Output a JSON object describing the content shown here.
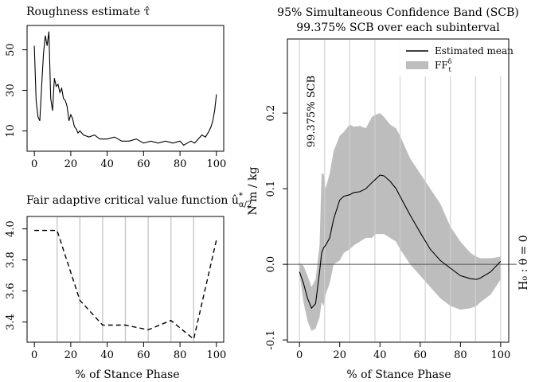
{
  "chart_data": [
    {
      "id": "roughness",
      "type": "line",
      "title": "Roughness estimate τ̂",
      "xlabel": "",
      "ylabel": "",
      "xlim": [
        0,
        100
      ],
      "ylim": [
        0,
        62
      ],
      "xticks": [
        0,
        20,
        40,
        60,
        80,
        100
      ],
      "yticks": [
        10,
        30,
        50
      ],
      "grid": false,
      "series": [
        {
          "x": [
            0,
            1,
            2,
            3,
            4,
            5,
            6,
            7,
            8,
            9,
            10,
            11,
            12,
            13,
            14,
            15,
            16,
            17,
            18,
            19,
            20,
            21,
            22,
            23,
            24,
            25,
            27,
            30,
            33,
            36,
            40,
            44,
            48,
            52,
            56,
            60,
            64,
            68,
            72,
            76,
            80,
            82,
            84,
            86,
            88,
            90,
            92,
            94,
            96,
            97,
            98,
            99,
            100
          ],
          "y": [
            52,
            25,
            17,
            15,
            32,
            48,
            57,
            52,
            59,
            26,
            20,
            36,
            32,
            33,
            29,
            31,
            26,
            25,
            22,
            15,
            18,
            16,
            12,
            11,
            9,
            10,
            8,
            7,
            8,
            6,
            6,
            7,
            5,
            5,
            6,
            4,
            5,
            4,
            5,
            4,
            5,
            3,
            4,
            5,
            4,
            6,
            8,
            7,
            10,
            12,
            15,
            20,
            28
          ]
        }
      ]
    },
    {
      "id": "critical",
      "type": "line",
      "title": "Fair adaptive critical value function û*α/2",
      "title_main": "Fair adaptive critical value function û",
      "title_sup": "*",
      "title_sub": "α/2",
      "xlabel": "% of Stance Phase",
      "ylabel": "",
      "xlim": [
        0,
        100
      ],
      "ylim": [
        3.27,
        4.08
      ],
      "xticks": [
        0,
        20,
        40,
        60,
        80,
        100
      ],
      "yticks": [
        3.4,
        3.6,
        3.8,
        4.0
      ],
      "vlines": [
        12.5,
        25,
        37.5,
        50,
        62.5,
        75,
        87.5
      ],
      "series": [
        {
          "style": "dashed",
          "x": [
            0,
            12.5,
            25,
            37.5,
            50,
            62.5,
            75,
            87.5,
            100
          ],
          "y": [
            3.99,
            3.99,
            3.54,
            3.38,
            3.38,
            3.35,
            3.41,
            3.29,
            3.93
          ]
        }
      ]
    },
    {
      "id": "band",
      "type": "area",
      "title": "95% Simultaneous Confidence Band (SCB)",
      "subtitle": "99.375% SCB over each subinterval",
      "xlabel": "% of Stance Phase",
      "ylabel": "N m / kg",
      "right_label": "H₀ : θ = 0",
      "annotation": "99.375% SCB",
      "xlim": [
        -6,
        104
      ],
      "ylim": [
        -0.103,
        0.298
      ],
      "xticks": [
        0,
        20,
        40,
        60,
        80,
        100
      ],
      "yticks": [
        -0.1,
        0.0,
        0.1,
        0.2
      ],
      "ytick_labels": [
        "-0.1",
        "0.0",
        "0.1",
        "0.2"
      ],
      "hline": 0,
      "vlines": [
        0,
        12.5,
        25,
        37.5,
        50,
        62.5,
        75,
        87.5,
        100
      ],
      "legend": {
        "position": "top-right",
        "items": [
          {
            "label": "Estimated mean",
            "kind": "line"
          },
          {
            "label": "FF",
            "sup": "δ",
            "sub": "t",
            "kind": "fill"
          }
        ]
      },
      "fill_color": "#bdbdbd",
      "x": [
        0,
        2,
        4,
        6,
        8,
        10,
        11,
        12,
        13,
        15,
        17,
        20,
        22,
        25,
        27,
        30,
        33,
        36,
        38,
        40,
        42,
        45,
        48,
        50,
        55,
        60,
        65,
        70,
        75,
        80,
        85,
        88,
        90,
        95,
        100
      ],
      "mean": [
        -0.01,
        -0.025,
        -0.045,
        -0.058,
        -0.052,
        -0.01,
        0.015,
        0.022,
        0.025,
        0.035,
        0.06,
        0.085,
        0.09,
        0.092,
        0.095,
        0.096,
        0.1,
        0.108,
        0.113,
        0.118,
        0.117,
        0.11,
        0.1,
        0.09,
        0.065,
        0.042,
        0.02,
        0.005,
        -0.005,
        -0.015,
        -0.019,
        -0.02,
        -0.018,
        -0.01,
        0.004
      ],
      "upper": [
        0.002,
        -0.002,
        -0.015,
        -0.03,
        -0.02,
        0.025,
        0.12,
        0.12,
        0.1,
        0.12,
        0.15,
        0.17,
        0.175,
        0.185,
        0.182,
        0.183,
        0.18,
        0.195,
        0.198,
        0.2,
        0.195,
        0.185,
        0.18,
        0.17,
        0.14,
        0.12,
        0.1,
        0.08,
        0.05,
        0.03,
        0.015,
        0.01,
        0.008,
        0.008,
        0.01
      ],
      "lower": [
        -0.012,
        -0.05,
        -0.075,
        -0.088,
        -0.085,
        -0.07,
        -0.05,
        -0.055,
        -0.04,
        -0.025,
        0.0,
        0.005,
        0.015,
        0.02,
        0.025,
        0.03,
        0.035,
        0.035,
        0.04,
        0.04,
        0.04,
        0.035,
        0.03,
        0.02,
        0.0,
        -0.015,
        -0.03,
        -0.045,
        -0.055,
        -0.06,
        -0.058,
        -0.055,
        -0.05,
        -0.04,
        -0.02
      ]
    }
  ]
}
